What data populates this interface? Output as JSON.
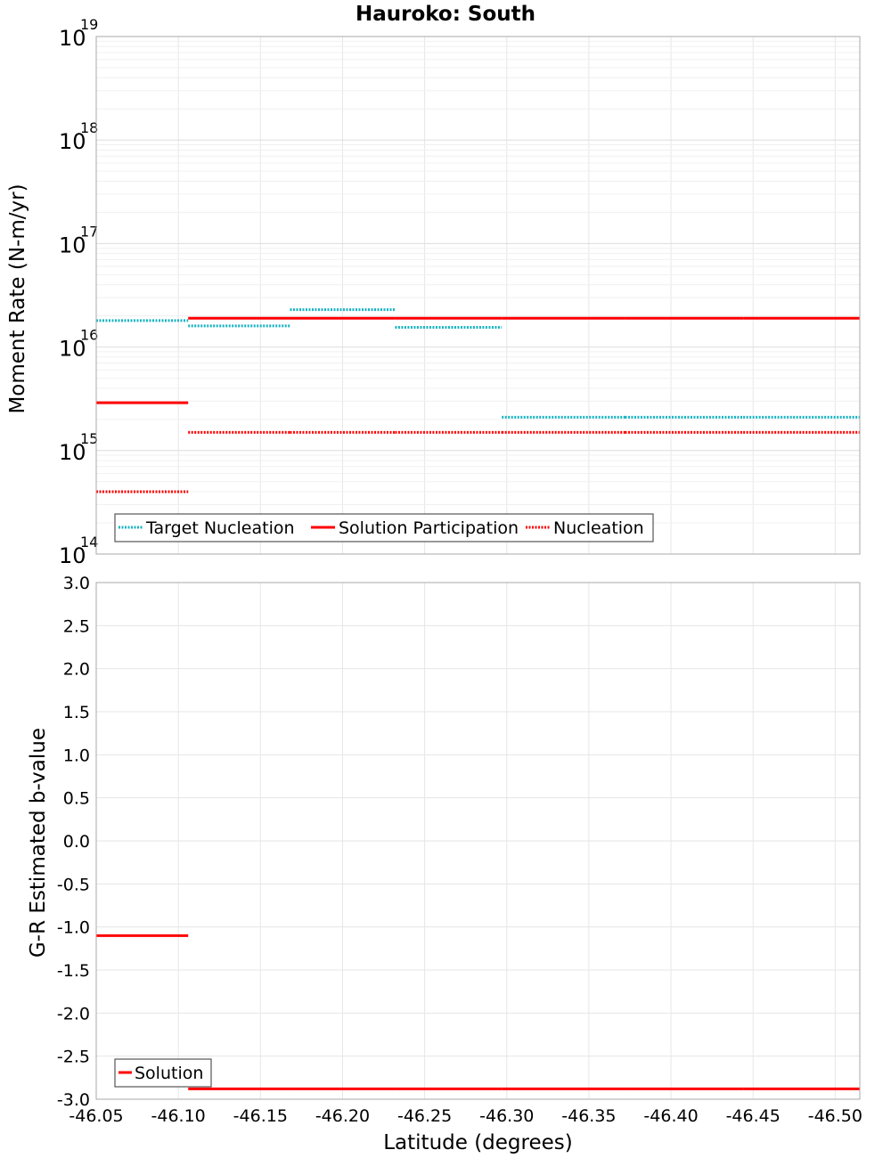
{
  "chart_data": [
    {
      "type": "line",
      "title": "Hauroko: South",
      "xlabel": "Latitude (degrees)",
      "ylabel": "Moment Rate (N-m/yr)",
      "yscale": "log",
      "ylim": [
        100000000000000.0,
        1e+19
      ],
      "xlim": [
        -46.05,
        -46.515
      ],
      "y_ticks": [
        {
          "base": "10",
          "exp": "14"
        },
        {
          "base": "10",
          "exp": "15"
        },
        {
          "base": "10",
          "exp": "16"
        },
        {
          "base": "10",
          "exp": "17"
        },
        {
          "base": "10",
          "exp": "18"
        },
        {
          "base": "10",
          "exp": "19"
        }
      ],
      "legend_position": "bottom-left",
      "series": [
        {
          "name": "Target Nucleation",
          "color": "#17b3c4",
          "style": "dotted",
          "segments": [
            {
              "x": [
                -46.05,
                -46.106
              ],
              "y": 1.8e+16
            },
            {
              "x": [
                -46.106,
                -46.168
              ],
              "y": 1.6e+16
            },
            {
              "x": [
                -46.168,
                -46.232
              ],
              "y": 2.3e+16
            },
            {
              "x": [
                -46.232,
                -46.297
              ],
              "y": 1.55e+16
            },
            {
              "x": [
                -46.297,
                -46.372
              ],
              "y": 2100000000000000.0
            },
            {
              "x": [
                -46.372,
                -46.444
              ],
              "y": 2100000000000000.0
            },
            {
              "x": [
                -46.444,
                -46.515
              ],
              "y": 2100000000000000.0
            }
          ]
        },
        {
          "name": "Solution Participation",
          "color": "#ff0000",
          "style": "solid",
          "segments": [
            {
              "x": [
                -46.05,
                -46.106
              ],
              "y": 2900000000000000.0
            },
            {
              "x": [
                -46.106,
                -46.168
              ],
              "y": 1.9e+16
            },
            {
              "x": [
                -46.168,
                -46.232
              ],
              "y": 1.9e+16
            },
            {
              "x": [
                -46.232,
                -46.297
              ],
              "y": 1.9e+16
            },
            {
              "x": [
                -46.297,
                -46.372
              ],
              "y": 1.9e+16
            },
            {
              "x": [
                -46.372,
                -46.444
              ],
              "y": 1.9e+16
            },
            {
              "x": [
                -46.444,
                -46.515
              ],
              "y": 1.9e+16
            }
          ]
        },
        {
          "name": "Nucleation",
          "color": "#ff0000",
          "style": "dotted",
          "segments": [
            {
              "x": [
                -46.05,
                -46.106
              ],
              "y": 400000000000000.0
            },
            {
              "x": [
                -46.106,
                -46.168
              ],
              "y": 1500000000000000.0
            },
            {
              "x": [
                -46.168,
                -46.232
              ],
              "y": 1500000000000000.0
            },
            {
              "x": [
                -46.232,
                -46.297
              ],
              "y": 1500000000000000.0
            },
            {
              "x": [
                -46.297,
                -46.372
              ],
              "y": 1500000000000000.0
            },
            {
              "x": [
                -46.372,
                -46.444
              ],
              "y": 1500000000000000.0
            },
            {
              "x": [
                -46.444,
                -46.515
              ],
              "y": 1500000000000000.0
            }
          ]
        }
      ]
    },
    {
      "type": "line",
      "title": "",
      "xlabel": "Latitude (degrees)",
      "ylabel": "G-R Estimated b-value",
      "ylim": [
        -3.0,
        3.0
      ],
      "xlim": [
        -46.05,
        -46.515
      ],
      "x_ticks": [
        "-46.05",
        "-46.10",
        "-46.15",
        "-46.20",
        "-46.25",
        "-46.30",
        "-46.35",
        "-46.40",
        "-46.45",
        "-46.50"
      ],
      "y_ticks": [
        "3.0",
        "2.5",
        "2.0",
        "1.5",
        "1.0",
        "0.5",
        "0.0",
        "-0.5",
        "-1.0",
        "-1.5",
        "-2.0",
        "-2.5",
        "-3.0"
      ],
      "legend_position": "bottom-left",
      "series": [
        {
          "name": "Solution",
          "color": "#ff0000",
          "style": "solid",
          "segments": [
            {
              "x": [
                -46.05,
                -46.106
              ],
              "y": -1.1
            },
            {
              "x": [
                -46.106,
                -46.168
              ],
              "y": -2.88
            },
            {
              "x": [
                -46.168,
                -46.232
              ],
              "y": -2.88
            },
            {
              "x": [
                -46.232,
                -46.297
              ],
              "y": -2.88
            },
            {
              "x": [
                -46.297,
                -46.372
              ],
              "y": -2.88
            },
            {
              "x": [
                -46.372,
                -46.444
              ],
              "y": -2.88
            },
            {
              "x": [
                -46.444,
                -46.515
              ],
              "y": -2.88
            }
          ]
        }
      ]
    }
  ]
}
